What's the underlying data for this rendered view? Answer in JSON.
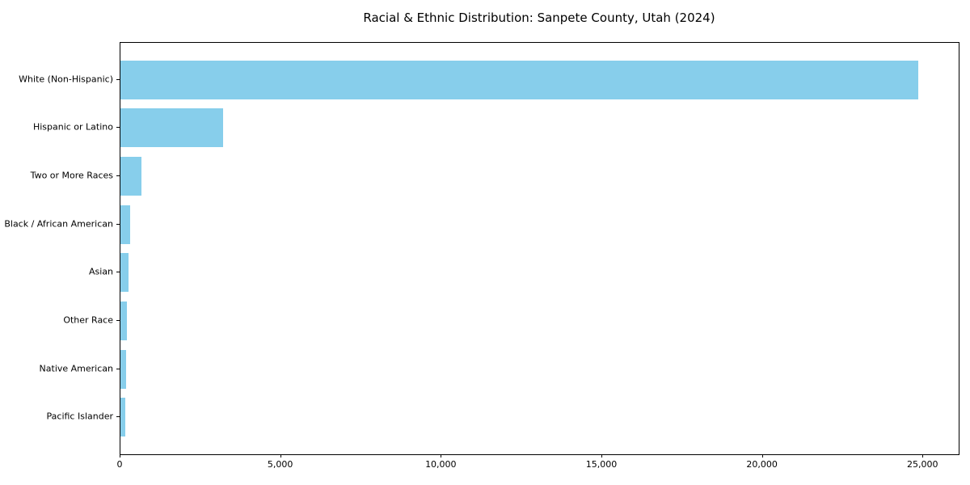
{
  "chart_data": {
    "type": "bar",
    "orientation": "horizontal",
    "title": "Racial & Ethnic Distribution: Sanpete County, Utah (2024)",
    "categories": [
      "White (Non-Hispanic)",
      "Hispanic or Latino",
      "Two or More Races",
      "Black / African American",
      "Asian",
      "Other Race",
      "Native American",
      "Pacific Islander"
    ],
    "values": [
      24850,
      3200,
      660,
      300,
      260,
      210,
      185,
      160
    ],
    "xlabel": "",
    "ylabel": "",
    "xlim": [
      0,
      26100
    ],
    "x_ticks": [
      0,
      5000,
      10000,
      15000,
      20000,
      25000
    ],
    "x_tick_labels": [
      "0",
      "5,000",
      "10,000",
      "15,000",
      "20,000",
      "25,000"
    ],
    "bar_color": "#87CEEB",
    "axis_color": "#000000",
    "grid": false,
    "legend": null
  }
}
